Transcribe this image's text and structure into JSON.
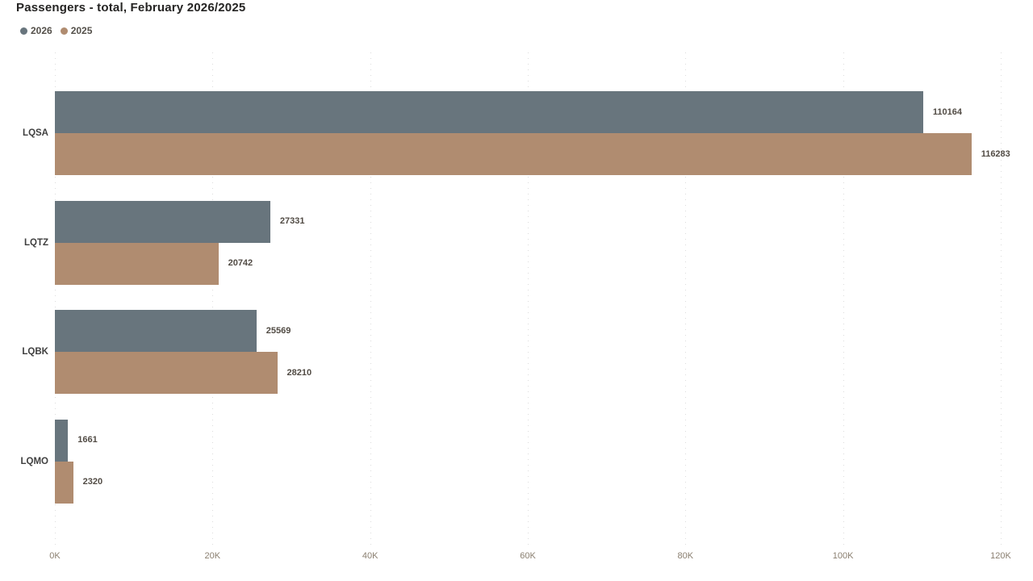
{
  "title": "Passengers - total, February 2026/2025",
  "legend": {
    "items": [
      {
        "label": "2026",
        "color": "#68757d"
      },
      {
        "label": "2025",
        "color": "#b08c70"
      }
    ]
  },
  "colors": {
    "series_2026": "#68757d",
    "series_2025": "#b08c70",
    "title_text": "#252423",
    "value_label_text": "#514b44",
    "category_label_text": "#3f3f3f",
    "axis_tick_text": "#8a7f70",
    "gridline": "#dcdcdc",
    "background": "#ffffff"
  },
  "chart_data": {
    "type": "bar",
    "orientation": "horizontal",
    "title": "Passengers - total, February 2026/2025",
    "categories": [
      "LQSA",
      "LQTZ",
      "LQBK",
      "LQMO"
    ],
    "series": [
      {
        "name": "2026",
        "color": "#68757d",
        "values": [
          110164,
          27331,
          25569,
          1661
        ]
      },
      {
        "name": "2025",
        "color": "#b08c70",
        "values": [
          116283,
          20742,
          28210,
          2320
        ]
      }
    ],
    "value_labels": [
      "110164",
      "116283",
      "27331",
      "20742",
      "25569",
      "28210",
      "1661",
      "2320"
    ],
    "xlabel": "",
    "ylabel": "",
    "xlim": [
      0,
      120000
    ],
    "x_ticks": [
      {
        "label": "0K",
        "value": 0
      },
      {
        "label": "20K",
        "value": 20000
      },
      {
        "label": "40K",
        "value": 40000
      },
      {
        "label": "60K",
        "value": 60000
      },
      {
        "label": "80K",
        "value": 80000
      },
      {
        "label": "100K",
        "value": 100000
      },
      {
        "label": "120K",
        "value": 120000
      }
    ],
    "grid": "vertical-dotted",
    "legend_position": "top-left",
    "show_value_labels": true
  }
}
